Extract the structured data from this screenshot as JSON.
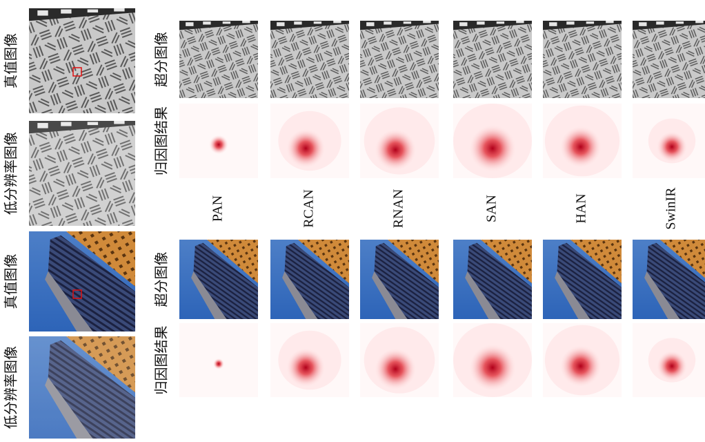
{
  "left_panel": {
    "labels": [
      "真值图像",
      "低分辨率图像",
      "真值图像",
      "低分辨率图像"
    ]
  },
  "row_labels": [
    "超分图像",
    "归因图结果"
  ],
  "methods": [
    "PAN",
    "RCAN",
    "RNAN",
    "SAN",
    "HAN",
    "SwinIR"
  ]
}
